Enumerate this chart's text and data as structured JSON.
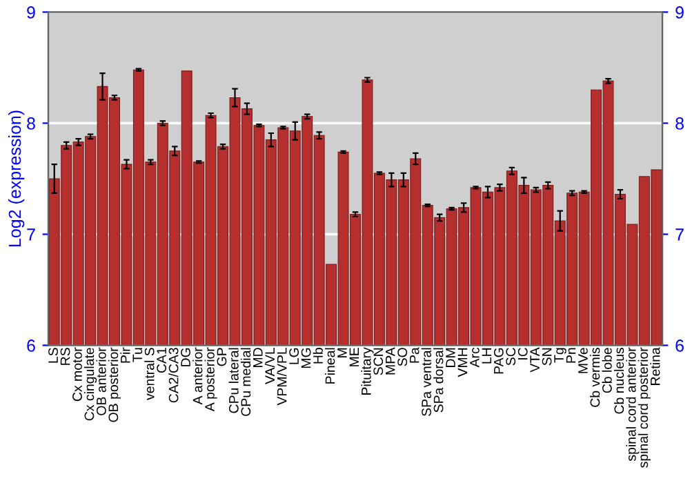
{
  "chart_data": {
    "type": "bar",
    "ylabel": "Log2 (expression)",
    "categories": [
      "LS",
      "RS",
      "Cx motor",
      "Cx cingulate",
      "OB anterior",
      "OB posterior",
      "Pir",
      "Tu",
      "ventral S",
      "CA1",
      "CA2/CA3",
      "DG",
      "A anterior",
      "A posterior",
      "GP",
      "CPu lateral",
      "CPu medial",
      "MD",
      "VA/VL",
      "VPM/VPL",
      "LG",
      "MG",
      "Hb",
      "Pineal",
      "M",
      "ME",
      "Pituitary",
      "SCN",
      "MPA",
      "SO",
      "Pa",
      "SPa ventral",
      "SPa dorsal",
      "DM",
      "VMH",
      "Arc",
      "LH",
      "PAG",
      "SC",
      "IC",
      "VTA",
      "SN",
      "Tg",
      "Pn",
      "MVe",
      "Cb vermis",
      "Cb lobe",
      "Cb nucleus",
      "spinal cord anterior",
      "spinal cord posterior",
      "Retina"
    ],
    "values": [
      7.5,
      7.8,
      7.83,
      7.88,
      8.33,
      8.23,
      7.63,
      8.48,
      7.65,
      8.0,
      7.75,
      8.47,
      7.65,
      8.07,
      7.79,
      8.23,
      8.13,
      7.98,
      7.85,
      7.96,
      7.93,
      8.06,
      7.89,
      6.73,
      7.74,
      7.18,
      8.39,
      7.55,
      7.49,
      7.49,
      7.68,
      7.26,
      7.15,
      7.23,
      7.24,
      7.42,
      7.38,
      7.42,
      7.57,
      7.44,
      7.4,
      7.44,
      7.12,
      7.37,
      7.38,
      8.3,
      8.38,
      7.36,
      7.09,
      7.52,
      7.58
    ],
    "errors": [
      0.13,
      0.03,
      0.03,
      0.02,
      0.12,
      0.02,
      0.04,
      0.01,
      0.02,
      0.02,
      0.04,
      null,
      0.01,
      0.02,
      0.02,
      0.08,
      0.05,
      0.01,
      0.06,
      0.01,
      0.08,
      0.02,
      0.03,
      null,
      0.01,
      0.02,
      0.02,
      0.01,
      0.06,
      0.06,
      0.05,
      0.01,
      0.03,
      0.01,
      0.04,
      0.01,
      0.05,
      0.03,
      0.03,
      0.07,
      0.02,
      0.03,
      0.09,
      0.02,
      0.01,
      null,
      0.02,
      0.04,
      null,
      null,
      null
    ],
    "color": "#b52f2f",
    "ylim": [
      6,
      9
    ],
    "yticks": [
      6,
      7,
      8,
      9
    ],
    "y2lim": [
      6,
      9
    ],
    "y2ticks": [
      6,
      7,
      8,
      9
    ],
    "grid": "y"
  }
}
